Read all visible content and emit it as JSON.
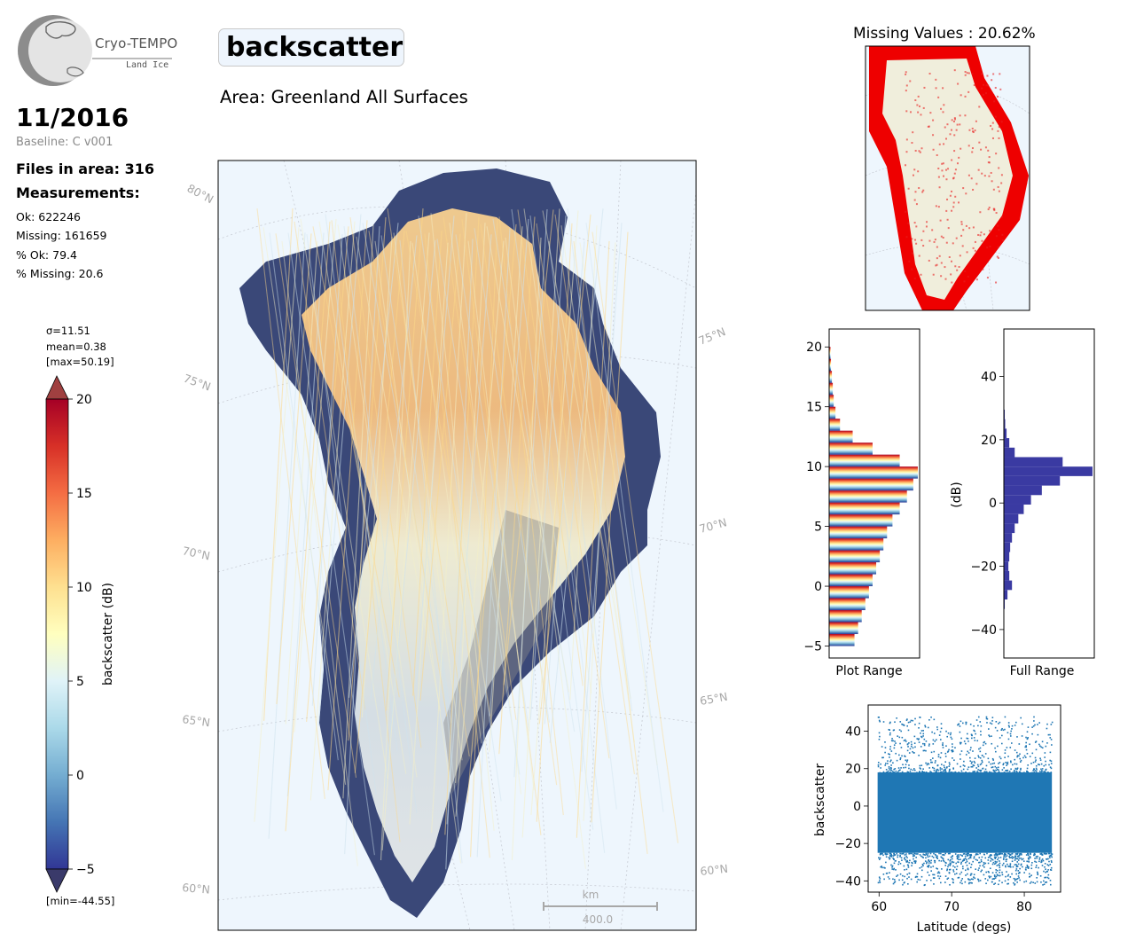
{
  "logo": {
    "name": "Cryo-TEMPO",
    "subtitle": "Land Ice"
  },
  "header": {
    "period": "11/2016",
    "baseline": "Baseline: C v001",
    "files_in_area": "Files in area: 316",
    "measurements_heading": "Measurements:",
    "stats": [
      "Ok: 622246",
      "Missing: 161659",
      "% Ok: 79.4",
      "% Missing: 20.6"
    ]
  },
  "title": "backscatter",
  "area": "Area: Greenland All Surfaces",
  "missing_values_title": "Missing Values : 20.62%",
  "colorbar": {
    "sigma": "σ=11.51",
    "mean": "mean=0.38",
    "max": "[max=50.19]",
    "min": "[min=-44.55]",
    "label": "backscatter (dB)",
    "ticks": [
      20,
      15,
      10,
      5,
      0,
      -5
    ],
    "tick_labels": [
      "20",
      "15",
      "10",
      "5",
      "0",
      "−5"
    ],
    "range": [
      -5,
      20
    ],
    "colors": [
      "#313695",
      "#4575b4",
      "#74add1",
      "#abd9e9",
      "#e0f3f8",
      "#ffffbf",
      "#fee090",
      "#fdae61",
      "#f46d43",
      "#d73027",
      "#a50026"
    ]
  },
  "map": {
    "lat_labels_left": [
      "80°N",
      "75°N",
      "70°N",
      "65°N",
      "60°N"
    ],
    "lat_labels_right": [
      "75°N",
      "70°N",
      "65°N",
      "60°N"
    ],
    "scale_unit": "km",
    "scale_value": "400.0",
    "colors": {
      "ocean": "#eef6fd",
      "land": "#f0eedc",
      "missing": "#ee0000",
      "grid": "#c8ccd4"
    }
  },
  "chart_data": [
    {
      "type": "bar",
      "orientation": "horizontal",
      "xlabel": "Plot Range",
      "ylim": [
        -6,
        21.5
      ],
      "yticks": [
        -5,
        0,
        5,
        10,
        15,
        20
      ],
      "ytick_labels": [
        "−5",
        "0",
        "5",
        "10",
        "15",
        "20"
      ],
      "bins_center": [
        -4.5,
        -3.5,
        -2.5,
        -1.5,
        -0.5,
        0.5,
        1.5,
        2.5,
        3.5,
        4.5,
        5.5,
        6.5,
        7.5,
        8.5,
        9.5,
        10.5,
        11.5,
        12.5,
        13.5,
        14.5,
        15.5,
        16.5,
        17.5,
        18.5,
        19.5
      ],
      "counts": [
        0.28,
        0.32,
        0.36,
        0.4,
        0.44,
        0.48,
        0.52,
        0.56,
        0.6,
        0.64,
        0.7,
        0.78,
        0.86,
        0.93,
        0.98,
        0.78,
        0.48,
        0.26,
        0.12,
        0.07,
        0.05,
        0.04,
        0.03,
        0.02,
        0.015
      ]
    },
    {
      "type": "bar",
      "orientation": "horizontal",
      "xlabel": "Full Range",
      "ylabel": "(dB)",
      "ylim": [
        -49,
        55
      ],
      "yticks": [
        -40,
        -20,
        0,
        20,
        40
      ],
      "ytick_labels": [
        "−40",
        "−20",
        "0",
        "20",
        "40"
      ],
      "bins_center": [
        -32,
        -29,
        -26,
        -23,
        -20,
        -17,
        -14,
        -11,
        -8,
        -5,
        -2,
        1,
        4,
        7,
        10,
        13,
        16,
        19,
        22,
        25,
        28
      ],
      "counts": [
        0.01,
        0.04,
        0.09,
        0.06,
        0.05,
        0.06,
        0.07,
        0.09,
        0.12,
        0.16,
        0.22,
        0.3,
        0.42,
        0.62,
        0.98,
        0.65,
        0.12,
        0.06,
        0.03,
        0.015,
        0.01
      ],
      "color": "#3a3aa2"
    },
    {
      "type": "scatter",
      "xlabel": "Latitude (degs)",
      "ylabel": "backscatter",
      "xlim": [
        58.5,
        85
      ],
      "ylim": [
        -46,
        54
      ],
      "xticks": [
        60,
        70,
        80
      ],
      "yticks": [
        -40,
        -20,
        0,
        20,
        40
      ],
      "ytick_labels": [
        "−40",
        "−20",
        "0",
        "20",
        "40"
      ],
      "x_range": [
        59.8,
        83.8
      ],
      "y_core": [
        -25,
        18
      ],
      "y_extent": [
        -42,
        48
      ],
      "color": "#1f77b4"
    }
  ]
}
